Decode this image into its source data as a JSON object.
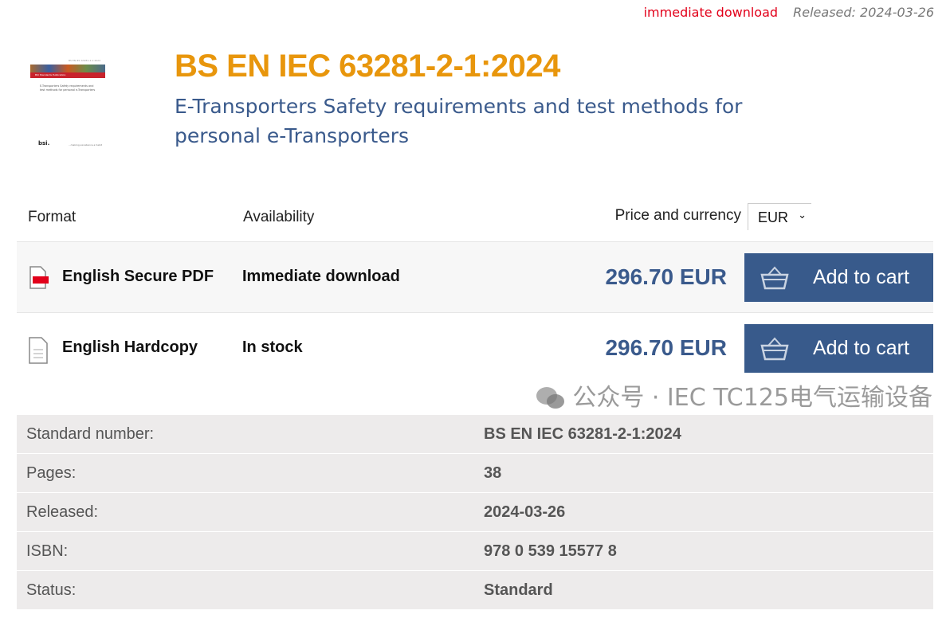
{
  "topbar": {
    "availability": "immediate download",
    "released": "Released: 2024-03-26"
  },
  "cover": {
    "code": "BS EN IEC 63281-2-1:2024",
    "band": "BSI Standards Publication",
    "title": "E-Transporters Safety requirements and test methods for personal e-Transporters",
    "logo": "bsi.",
    "tagline": "...making excellence a habit"
  },
  "product": {
    "title": "BS EN IEC 63281-2-1:2024",
    "subtitle": "E-Transporters Safety requirements and test methods for personal e-Transporters"
  },
  "table_header": {
    "format": "Format",
    "availability": "Availability",
    "price": "Price and currency",
    "currency": "EUR"
  },
  "offers": [
    {
      "icon": "pdf-file-icon",
      "format": "English Secure PDF",
      "availability": "Immediate download",
      "price": "296.70 EUR",
      "button": "Add to cart"
    },
    {
      "icon": "document-icon",
      "format": "English Hardcopy",
      "availability": "In stock",
      "price": "296.70 EUR",
      "button": "Add to cart"
    }
  ],
  "details": [
    {
      "label": "Standard number:",
      "value": "BS EN IEC 63281-2-1:2024"
    },
    {
      "label": "Pages:",
      "value": "38"
    },
    {
      "label": "Released:",
      "value": "2024-03-26"
    },
    {
      "label": "ISBN:",
      "value": "978 0 539 15577 8"
    },
    {
      "label": "Status:",
      "value": "Standard"
    }
  ],
  "watermark": "公众号 · IEC TC125电气运输设备",
  "colors": {
    "title": "#e8960c",
    "accent": "#385a8b",
    "alert": "#e2001a"
  }
}
